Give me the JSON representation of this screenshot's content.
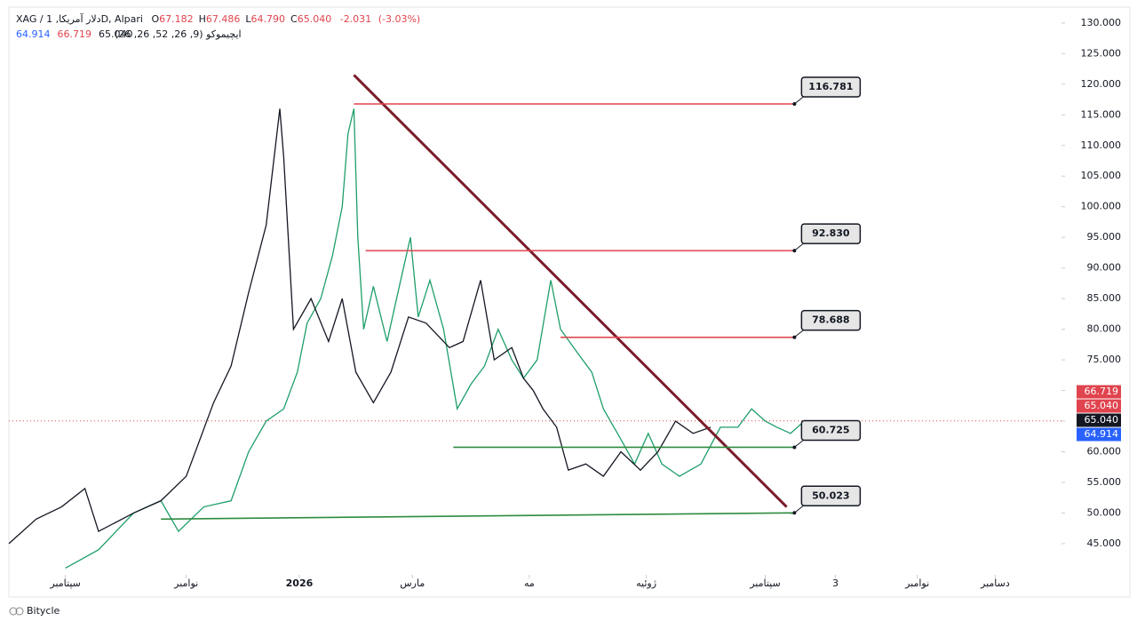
{
  "chart_data": {
    "type": "line",
    "title": "XAG / دلار آمریکا, 1D, Alpari",
    "ohlc": [
      {
        "name": "O",
        "value": 67.182
      },
      {
        "name": "H",
        "value": 67.486
      },
      {
        "name": "L",
        "value": 64.79,
        "label": "64.790"
      },
      {
        "name": "C",
        "value": 65.04,
        "label": "65.040"
      }
    ],
    "change": -2.031,
    "change_percent": {
      "value": -3.03,
      "label": "(-3.03%)"
    },
    "indicator": "ایچیموکو (9, 26, 52, 26, 26)",
    "indicator_values": [
      {
        "value": 64.914,
        "color": "#2962ff"
      },
      {
        "value": 66.719,
        "color": "#e0444e"
      },
      {
        "value": 65.04,
        "label": "65.040",
        "color": "#131722"
      }
    ],
    "watermark": "Bitycle",
    "xlim": [
      0,
      540
    ],
    "ylim": [
      40.2,
      132.3
    ],
    "xticks": [
      {
        "value": 29,
        "label": "سپتامبر"
      },
      {
        "value": 91,
        "label": "نوامبر"
      },
      {
        "value": 149,
        "label": "2026"
      },
      {
        "value": 207,
        "label": "مارس"
      },
      {
        "value": 267,
        "label": "مه"
      },
      {
        "value": 327,
        "label": "ژوئیه"
      },
      {
        "value": 388,
        "label": "سپتامبر"
      },
      {
        "value": 424,
        "label": "3"
      },
      {
        "value": 466,
        "label": "نوامبر"
      },
      {
        "value": 506,
        "label": "دسامبر"
      }
    ],
    "yticks": [
      {
        "value": 45,
        "label": "45.000"
      },
      {
        "value": 50,
        "label": "50.000"
      },
      {
        "value": 55,
        "label": "55.000"
      },
      {
        "value": 60,
        "label": "60.000"
      },
      {
        "value": 65,
        "label": "65.000"
      },
      {
        "value": 70,
        "label": "70.000"
      },
      {
        "value": 75,
        "label": "75.000"
      },
      {
        "value": 80,
        "label": "80.000"
      },
      {
        "value": 85,
        "label": "85.000"
      },
      {
        "value": 90,
        "label": "90.000"
      },
      {
        "value": 95,
        "label": "95.000"
      },
      {
        "value": 100,
        "label": "100.000"
      },
      {
        "value": 105,
        "label": "105.000"
      },
      {
        "value": 110,
        "label": "110.000"
      },
      {
        "value": 115,
        "label": "115.000"
      },
      {
        "value": 120,
        "label": "120.000"
      },
      {
        "value": 125,
        "label": "125.000"
      },
      {
        "value": 130,
        "label": "130.000"
      }
    ],
    "series": [
      {
        "color": "#1e9e6a",
        "x": [
          29,
          46,
          64,
          78,
          87,
          100,
          114,
          123,
          132,
          141,
          148,
          153,
          160,
          166,
          171,
          174,
          177,
          179,
          182,
          187,
          194,
          201,
          206,
          210,
          216,
          223,
          230,
          237,
          244,
          251,
          258,
          264,
          271,
          278,
          283,
          292,
          299,
          305,
          314,
          321,
          328,
          335,
          344,
          355,
          365,
          374,
          381,
          388,
          394,
          401,
          408
        ],
        "values": [
          41,
          44,
          50,
          52,
          47,
          51,
          52,
          60,
          65,
          67,
          73,
          81,
          85,
          92,
          100,
          112,
          116,
          95,
          80,
          87,
          78,
          88,
          95,
          82,
          88,
          80,
          67,
          71,
          74,
          80,
          75,
          72,
          75,
          88,
          80,
          76,
          73,
          67,
          62,
          58,
          63,
          58,
          56,
          58,
          64,
          64,
          67,
          65,
          64,
          63,
          65
        ]
      },
      {
        "color": "#131722",
        "x": [
          0,
          14,
          27,
          39,
          46,
          64,
          78,
          91,
          105,
          114,
          123,
          132,
          139,
          141,
          146,
          155,
          164,
          171,
          178,
          187,
          196,
          205,
          214,
          226,
          233,
          242,
          249,
          258,
          264,
          269,
          274,
          281,
          287,
          296,
          305,
          314,
          324,
          333,
          342,
          351,
          360
        ],
        "values": [
          45,
          49,
          51,
          54,
          47,
          50,
          52,
          56,
          68,
          74,
          86,
          97,
          116,
          108,
          80,
          85,
          78,
          85,
          73,
          68,
          73,
          82,
          81,
          77,
          78,
          88,
          75,
          77,
          72,
          70,
          67,
          64,
          57,
          58,
          56,
          60,
          57,
          60,
          65,
          63,
          64
        ]
      }
    ],
    "levels": [
      {
        "value": 116.781,
        "start_x": 177,
        "end_x": 403,
        "color": "#e0444e"
      },
      {
        "value": 92.83,
        "label": "92.830",
        "start_x": 183,
        "end_x": 403,
        "color": "#e0444e"
      },
      {
        "value": 78.688,
        "start_x": 283,
        "end_x": 403,
        "color": "#e0444e"
      },
      {
        "value": 60.725,
        "start_x": 228,
        "end_x": 403,
        "color": "#2e8b3e"
      },
      {
        "value": 50.023,
        "start_value": 49,
        "start_x": 78,
        "end_x": 403,
        "color": "#2e8b3e"
      }
    ],
    "trend_line": {
      "x": [
        177,
        399
      ],
      "y": [
        121.5,
        51
      ],
      "color": "#7a1c2a"
    },
    "price_tags": [
      {
        "value": 66.719,
        "color": "#e0444e"
      },
      {
        "value": 65.04,
        "label": "65.040",
        "color": "#e0444e"
      },
      {
        "value": 65.04,
        "label": "65.040",
        "color": "#131722"
      },
      {
        "value": 64.914,
        "color": "#2962ff"
      }
    ]
  }
}
